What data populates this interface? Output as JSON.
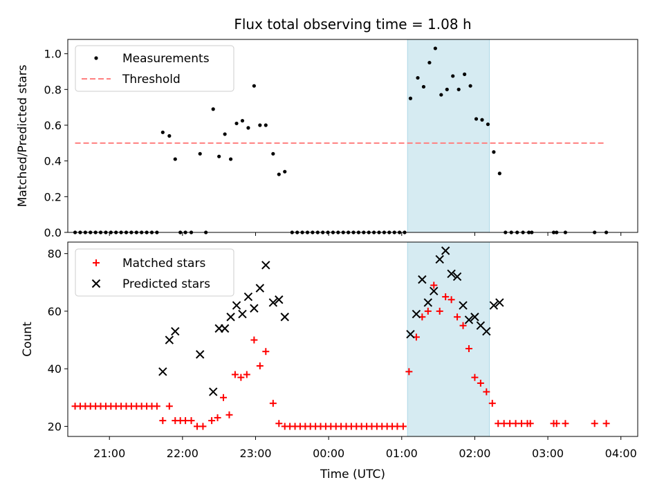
{
  "chart_data": [
    {
      "type": "scatter",
      "title": "Flux total observing time = 1.08 h",
      "xlabel": "",
      "ylabel": "Matched/Predicted stars",
      "x_unit": "hours since 20:00 UTC",
      "xlim": [
        0.43,
        8.23
      ],
      "ylim": [
        0,
        1.08
      ],
      "yticks": [
        "0.0",
        "0.2",
        "0.4",
        "0.6",
        "0.8",
        "1.0"
      ],
      "highlight_span": [
        5.08,
        6.2
      ],
      "legend": [
        "Measurements",
        "Threshold"
      ],
      "legend_position": "upper left",
      "threshold": {
        "name": "Threshold",
        "y": 0.5,
        "x_range": [
          0.53,
          7.8
        ],
        "color": "#ff7f7f"
      },
      "series": [
        {
          "name": "Measurements",
          "color": "#000000",
          "points": [
            [
              0.53,
              0
            ],
            [
              0.6,
              0
            ],
            [
              0.67,
              0
            ],
            [
              0.74,
              0
            ],
            [
              0.81,
              0
            ],
            [
              0.88,
              0
            ],
            [
              0.95,
              0
            ],
            [
              1.02,
              0
            ],
            [
              1.09,
              0
            ],
            [
              1.16,
              0
            ],
            [
              1.23,
              0
            ],
            [
              1.3,
              0
            ],
            [
              1.37,
              0
            ],
            [
              1.44,
              0
            ],
            [
              1.51,
              0
            ],
            [
              1.58,
              0
            ],
            [
              1.65,
              0
            ],
            [
              1.73,
              0.56
            ],
            [
              1.82,
              0.54
            ],
            [
              1.9,
              0.41
            ],
            [
              1.97,
              0
            ],
            [
              2.04,
              0
            ],
            [
              2.12,
              0
            ],
            [
              2.24,
              0.44
            ],
            [
              2.32,
              0
            ],
            [
              2.42,
              0.69
            ],
            [
              2.5,
              0.425
            ],
            [
              2.58,
              0.55
            ],
            [
              2.66,
              0.41
            ],
            [
              2.74,
              0.61
            ],
            [
              2.82,
              0.625
            ],
            [
              2.9,
              0.585
            ],
            [
              2.98,
              0.82
            ],
            [
              3.06,
              0.6
            ],
            [
              3.14,
              0.6
            ],
            [
              3.24,
              0.44
            ],
            [
              3.32,
              0.325
            ],
            [
              3.4,
              0.34
            ],
            [
              3.5,
              0
            ],
            [
              3.57,
              0
            ],
            [
              3.64,
              0
            ],
            [
              3.71,
              0
            ],
            [
              3.78,
              0
            ],
            [
              3.85,
              0
            ],
            [
              3.92,
              0
            ],
            [
              3.99,
              0
            ],
            [
              4.06,
              0
            ],
            [
              4.13,
              0
            ],
            [
              4.2,
              0
            ],
            [
              4.27,
              0
            ],
            [
              4.34,
              0
            ],
            [
              4.41,
              0
            ],
            [
              4.48,
              0
            ],
            [
              4.55,
              0
            ],
            [
              4.62,
              0
            ],
            [
              4.69,
              0
            ],
            [
              4.76,
              0
            ],
            [
              4.83,
              0
            ],
            [
              4.9,
              0
            ],
            [
              4.97,
              0
            ],
            [
              5.04,
              0
            ],
            [
              5.12,
              0.75
            ],
            [
              5.22,
              0.865
            ],
            [
              5.3,
              0.815
            ],
            [
              5.38,
              0.95
            ],
            [
              5.46,
              1.03
            ],
            [
              5.54,
              0.77
            ],
            [
              5.62,
              0.8
            ],
            [
              5.7,
              0.875
            ],
            [
              5.78,
              0.8
            ],
            [
              5.86,
              0.885
            ],
            [
              5.94,
              0.82
            ],
            [
              6.02,
              0.635
            ],
            [
              6.1,
              0.63
            ],
            [
              6.18,
              0.605
            ],
            [
              6.26,
              0.45
            ],
            [
              6.34,
              0.33
            ],
            [
              6.42,
              0
            ],
            [
              6.5,
              0
            ],
            [
              6.58,
              0
            ],
            [
              6.66,
              0
            ],
            [
              6.74,
              0
            ],
            [
              6.78,
              0
            ],
            [
              7.08,
              0
            ],
            [
              7.12,
              0
            ],
            [
              7.24,
              0
            ],
            [
              7.64,
              0
            ],
            [
              7.8,
              0
            ]
          ]
        }
      ]
    },
    {
      "type": "scatter",
      "title": "",
      "xlabel": "Time (UTC)",
      "ylabel": "Count",
      "x_unit": "hours since 20:00 UTC",
      "xlim": [
        0.43,
        8.23
      ],
      "ylim": [
        16.5,
        84
      ],
      "yticks": [
        "20",
        "40",
        "60",
        "80"
      ],
      "xticks": [
        {
          "x": 1,
          "label": "21:00"
        },
        {
          "x": 2,
          "label": "22:00"
        },
        {
          "x": 3,
          "label": "23:00"
        },
        {
          "x": 4,
          "label": "00:00"
        },
        {
          "x": 5,
          "label": "01:00"
        },
        {
          "x": 6,
          "label": "02:00"
        },
        {
          "x": 7,
          "label": "03:00"
        },
        {
          "x": 8,
          "label": "04:00"
        }
      ],
      "highlight_span": [
        5.08,
        6.2
      ],
      "legend": [
        "Matched stars",
        "Predicted stars"
      ],
      "legend_position": "upper left",
      "series": [
        {
          "name": "Matched stars",
          "marker": "+",
          "color": "#ff0000",
          "points": [
            [
              0.53,
              27
            ],
            [
              0.6,
              27
            ],
            [
              0.67,
              27
            ],
            [
              0.74,
              27
            ],
            [
              0.81,
              27
            ],
            [
              0.88,
              27
            ],
            [
              0.95,
              27
            ],
            [
              1.02,
              27
            ],
            [
              1.09,
              27
            ],
            [
              1.16,
              27
            ],
            [
              1.23,
              27
            ],
            [
              1.3,
              27
            ],
            [
              1.37,
              27
            ],
            [
              1.44,
              27
            ],
            [
              1.51,
              27
            ],
            [
              1.58,
              27
            ],
            [
              1.65,
              27
            ],
            [
              1.73,
              22
            ],
            [
              1.82,
              27
            ],
            [
              1.9,
              22
            ],
            [
              1.97,
              22
            ],
            [
              2.04,
              22
            ],
            [
              2.12,
              22
            ],
            [
              2.2,
              20
            ],
            [
              2.28,
              20
            ],
            [
              2.4,
              22
            ],
            [
              2.48,
              23
            ],
            [
              2.56,
              30
            ],
            [
              2.64,
              24
            ],
            [
              2.72,
              38
            ],
            [
              2.8,
              37
            ],
            [
              2.88,
              38
            ],
            [
              2.98,
              50
            ],
            [
              3.06,
              41
            ],
            [
              3.14,
              46
            ],
            [
              3.24,
              28
            ],
            [
              3.32,
              21
            ],
            [
              3.4,
              20
            ],
            [
              3.47,
              20
            ],
            [
              3.54,
              20
            ],
            [
              3.61,
              20
            ],
            [
              3.68,
              20
            ],
            [
              3.75,
              20
            ],
            [
              3.82,
              20
            ],
            [
              3.89,
              20
            ],
            [
              3.96,
              20
            ],
            [
              4.03,
              20
            ],
            [
              4.1,
              20
            ],
            [
              4.17,
              20
            ],
            [
              4.24,
              20
            ],
            [
              4.31,
              20
            ],
            [
              4.38,
              20
            ],
            [
              4.45,
              20
            ],
            [
              4.52,
              20
            ],
            [
              4.59,
              20
            ],
            [
              4.66,
              20
            ],
            [
              4.73,
              20
            ],
            [
              4.8,
              20
            ],
            [
              4.87,
              20
            ],
            [
              4.94,
              20
            ],
            [
              5.02,
              20
            ],
            [
              5.1,
              39
            ],
            [
              5.2,
              51
            ],
            [
              5.28,
              58
            ],
            [
              5.36,
              60
            ],
            [
              5.44,
              69
            ],
            [
              5.52,
              60
            ],
            [
              5.6,
              65
            ],
            [
              5.68,
              64
            ],
            [
              5.76,
              58
            ],
            [
              5.84,
              55
            ],
            [
              5.92,
              47
            ],
            [
              6.0,
              37
            ],
            [
              6.08,
              35
            ],
            [
              6.16,
              32
            ],
            [
              6.24,
              28
            ],
            [
              6.32,
              21
            ],
            [
              6.4,
              21
            ],
            [
              6.48,
              21
            ],
            [
              6.56,
              21
            ],
            [
              6.64,
              21
            ],
            [
              6.72,
              21
            ],
            [
              6.76,
              21
            ],
            [
              7.08,
              21
            ],
            [
              7.12,
              21
            ],
            [
              7.24,
              21
            ],
            [
              7.64,
              21
            ],
            [
              7.8,
              21
            ]
          ]
        },
        {
          "name": "Predicted stars",
          "marker": "x",
          "color": "#000000",
          "points": [
            [
              1.73,
              39
            ],
            [
              1.82,
              50
            ],
            [
              1.9,
              53
            ],
            [
              2.24,
              45
            ],
            [
              2.42,
              32
            ],
            [
              2.5,
              54
            ],
            [
              2.58,
              54
            ],
            [
              2.66,
              58
            ],
            [
              2.74,
              62
            ],
            [
              2.82,
              59
            ],
            [
              2.9,
              65
            ],
            [
              2.98,
              61
            ],
            [
              3.06,
              68
            ],
            [
              3.14,
              76
            ],
            [
              3.24,
              63
            ],
            [
              3.32,
              64
            ],
            [
              3.4,
              58
            ],
            [
              5.12,
              52
            ],
            [
              5.2,
              59
            ],
            [
              5.28,
              71
            ],
            [
              5.36,
              63
            ],
            [
              5.44,
              67
            ],
            [
              5.52,
              78
            ],
            [
              5.6,
              81
            ],
            [
              5.68,
              73
            ],
            [
              5.76,
              72
            ],
            [
              5.84,
              62
            ],
            [
              5.92,
              57
            ],
            [
              6.0,
              58
            ],
            [
              6.08,
              55
            ],
            [
              6.16,
              53
            ],
            [
              6.26,
              62
            ],
            [
              6.34,
              63
            ]
          ]
        }
      ]
    }
  ]
}
